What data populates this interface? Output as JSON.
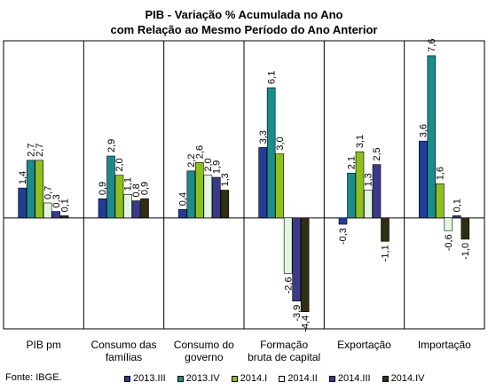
{
  "chart_data": {
    "type": "bar",
    "title_line1": "PIB - Variação % Acumulada no Ano",
    "title_line2": "com Relação ao Mesmo Período do Ano Anterior",
    "categories": [
      [
        "PIB pm"
      ],
      [
        "Consumo das",
        "famílias"
      ],
      [
        "Consumo do",
        "governo"
      ],
      [
        "Formação",
        "bruta de capital"
      ],
      [
        "Exportação"
      ],
      [
        "Importação"
      ]
    ],
    "series": [
      {
        "name": "2013.III",
        "color": "#1f3d99",
        "values": [
          1.4,
          0.9,
          0.4,
          3.3,
          -0.3,
          3.6
        ]
      },
      {
        "name": "2013.IV",
        "color": "#1a8c8c",
        "values": [
          2.7,
          2.9,
          2.2,
          6.1,
          2.1,
          7.6
        ]
      },
      {
        "name": "2014.I",
        "color": "#8fbf1f",
        "values": [
          2.7,
          2.0,
          2.6,
          3.0,
          3.1,
          1.6
        ]
      },
      {
        "name": "2014.II",
        "color": "#e2f7e2",
        "values": [
          0.7,
          1.1,
          2.0,
          -2.6,
          1.3,
          -0.6
        ]
      },
      {
        "name": "2014.III",
        "color": "#3a3a8c",
        "values": [
          0.3,
          0.8,
          1.9,
          -3.9,
          2.5,
          0.1
        ]
      },
      {
        "name": "2014.IV",
        "color": "#2e2e12",
        "values": [
          0.1,
          0.9,
          1.3,
          -4.4,
          -1.1,
          -1.0
        ]
      }
    ],
    "data_labels": [
      [
        "1,4",
        "2,7",
        "2,7",
        "0,7",
        "0,3",
        "0,1"
      ],
      [
        "0,9",
        "2,9",
        "2,0",
        "1,1",
        "0,8",
        "0,9"
      ],
      [
        "0,4",
        "2,2",
        "2,6",
        "2,0",
        "1,9",
        "1,3"
      ],
      [
        "3,3",
        "6,1",
        "3,0",
        "-2,6",
        "-3,9",
        "-4,4"
      ],
      [
        "-0,3",
        "2,1",
        "3,1",
        "1,3",
        "2,5",
        "-1,1"
      ],
      [
        "3,6",
        "7,6",
        "1,6",
        "-0,6",
        "0,1",
        "-1,0"
      ]
    ],
    "ylim": [
      -5.2,
      8.3
    ],
    "grid": false,
    "legend_position": "bottom"
  },
  "source": "Fonte: IBGE."
}
